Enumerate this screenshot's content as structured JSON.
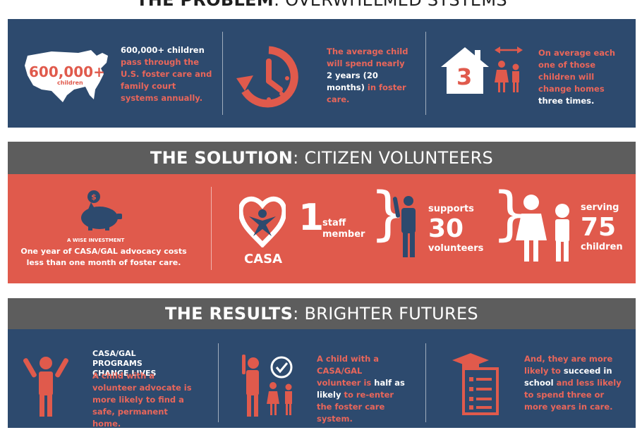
{
  "problem": {
    "title_bold": "THE PROBLEM",
    "title_rest": ": OVERWHELMED SYSTEMS",
    "map_number": "600,000+",
    "map_sub": "children",
    "stat1_bold": "600,000+ children",
    "stat1_rest": "pass through the U.S. foster care and family court systems annually.",
    "stat2_a": "The average child will spend nearly",
    "stat2_b": "2 years (20 months)",
    "stat2_c": "in foster care.",
    "house_number": "3",
    "stat3_a": "On average each one of those children will change homes",
    "stat3_b": "three times."
  },
  "solution": {
    "title_bold": "THE SOLUTION",
    "title_rest": ": CITIZEN VOLUNTEERS",
    "invest_label": "A WISE INVESTMENT",
    "invest_text": "One year of CASA/GAL advocacy costs less than one month of foster care.",
    "casa_logo": "CASA",
    "staff_number": "1",
    "staff_label": "staff member",
    "supports_label": "supports",
    "volunteers_number": "30",
    "volunteers_label": "volunteers",
    "serving_label": "serving",
    "children_number": "75",
    "children_label": "children"
  },
  "results": {
    "title_bold": "THE RESULTS",
    "title_rest": ": BRIGHTER FUTURES",
    "r1_head": "CASA/GAL PROGRAMS CHANGE LIVES",
    "r1_text": "A child with a volunteer advocate is more likely to find a safe, permanent home.",
    "r2_a": "A child with a CASA/GAL volunteer is",
    "r2_b": "half as likely",
    "r2_c": "to re-enter the foster care system.",
    "r3_a": "And, they are more likely to",
    "r3_b": "succeed in school",
    "r3_c": "and less likely to spend three or more years in care."
  },
  "colors": {
    "navy": "#2d4a6e",
    "coral": "#e05a4c",
    "header_gray": "#5d5d5d",
    "orange_text": "#e9665a"
  }
}
